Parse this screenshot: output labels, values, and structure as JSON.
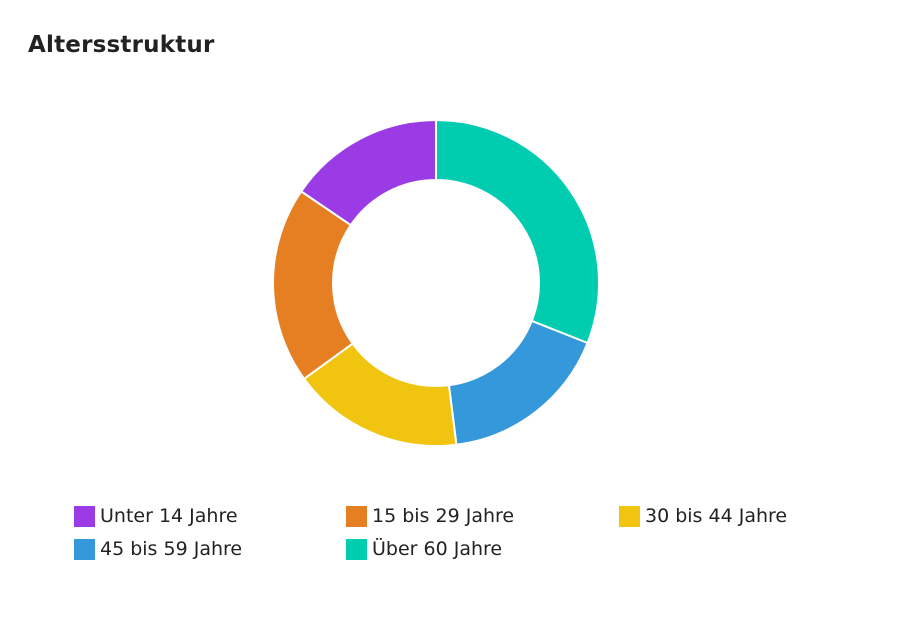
{
  "chart_data": {
    "type": "pie",
    "title": "Altersstruktur",
    "categories": [
      "Unter 14 Jahre",
      "15 bis 29 Jahre",
      "30 bis 44 Jahre",
      "45 bis 59 Jahre",
      "Über 60 Jahre"
    ],
    "values": [
      15.5,
      19.5,
      17,
      17,
      31
    ],
    "colors": [
      "#9b3be5",
      "#e67e22",
      "#f1c40f",
      "#3498db",
      "#00cdb0"
    ],
    "legend": "bottom"
  }
}
